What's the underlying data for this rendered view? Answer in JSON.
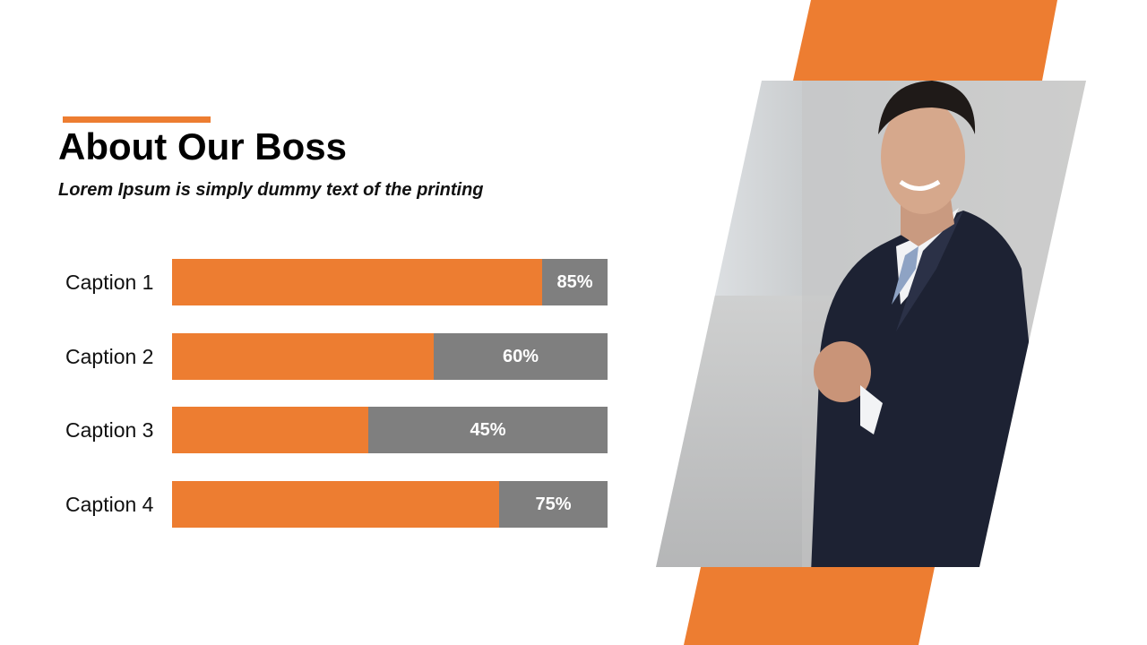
{
  "heading": {
    "title": "About Our Boss",
    "subtitle": "Lorem Ipsum is simply dummy text of the printing"
  },
  "colors": {
    "accent": "#ED7D31",
    "track": "#7F7F7F",
    "value_text": "#FFFFFF"
  },
  "photo": {
    "icon": "businessman-portrait-photo"
  },
  "chart_data": {
    "type": "bar",
    "orientation": "horizontal",
    "stacked_to_100": true,
    "categories": [
      "Caption 1",
      "Caption 2",
      "Caption 3",
      "Caption 4"
    ],
    "values": [
      85,
      60,
      45,
      75
    ],
    "value_labels": [
      "85%",
      "60%",
      "45%",
      "75%"
    ],
    "xlim": [
      0,
      100
    ],
    "title": "",
    "xlabel": "",
    "ylabel": "",
    "grid": false,
    "legend": "none"
  }
}
